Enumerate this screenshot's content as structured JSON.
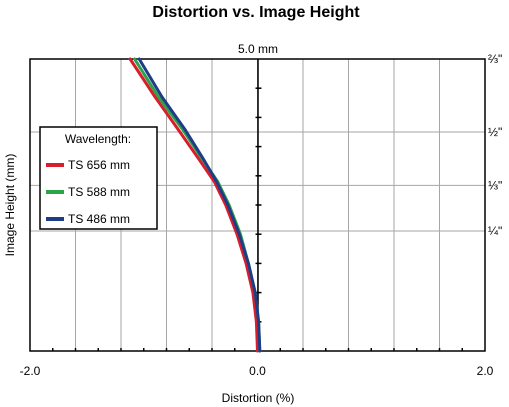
{
  "chart_data": {
    "type": "line",
    "title": "Distortion vs. Image Height",
    "xlabel": "Distortion (%)",
    "ylabel": "Image Height (mm)",
    "top_label": "5.0 mm",
    "xlim": [
      -2.0,
      2.0
    ],
    "ylim": [
      0,
      1
    ],
    "x_ticks": [
      {
        "value": -2.0,
        "label": "-2.0"
      },
      {
        "value": 0.0,
        "label": "0.0"
      },
      {
        "value": 2.0,
        "label": "2.0"
      }
    ],
    "right_ticks": [
      {
        "value": 1.0,
        "label": "⅔\""
      },
      {
        "value": 0.75,
        "label": "½\""
      },
      {
        "value": 0.567,
        "label": "⅓\""
      },
      {
        "value": 0.411,
        "label": "¼\""
      }
    ],
    "grid": true,
    "legend": {
      "title": "Wavelength:",
      "placement": "left",
      "entries": [
        {
          "label": "TS 656 mm",
          "color": "#d81e2a"
        },
        {
          "label": "TS 588 mm",
          "color": "#2ca24a"
        },
        {
          "label": "TS 486 mm",
          "color": "#1f3c88"
        }
      ]
    },
    "series": [
      {
        "name": "TS 656 mm",
        "color": "#d81e2a",
        "x": [
          0.0,
          -0.01,
          -0.04,
          -0.1,
          -0.18,
          -0.28,
          -0.38,
          -0.52,
          -0.7,
          -0.9,
          -1.12
        ],
        "y": [
          0.0,
          0.1,
          0.2,
          0.3,
          0.4,
          0.5,
          0.58,
          0.66,
          0.76,
          0.87,
          1.0
        ]
      },
      {
        "name": "TS 588 mm",
        "color": "#2ca24a",
        "x": [
          0.02,
          0.01,
          -0.02,
          -0.08,
          -0.15,
          -0.25,
          -0.35,
          -0.49,
          -0.66,
          -0.87,
          -1.08
        ],
        "y": [
          0.0,
          0.1,
          0.2,
          0.3,
          0.4,
          0.5,
          0.58,
          0.66,
          0.76,
          0.87,
          1.0
        ]
      },
      {
        "name": "TS 486 mm",
        "color": "#1f3c88",
        "x": [
          0.02,
          0.01,
          -0.02,
          -0.08,
          -0.16,
          -0.26,
          -0.36,
          -0.48,
          -0.64,
          -0.84,
          -1.04
        ],
        "y": [
          0.0,
          0.1,
          0.2,
          0.3,
          0.4,
          0.5,
          0.58,
          0.66,
          0.76,
          0.87,
          1.0
        ]
      }
    ]
  }
}
